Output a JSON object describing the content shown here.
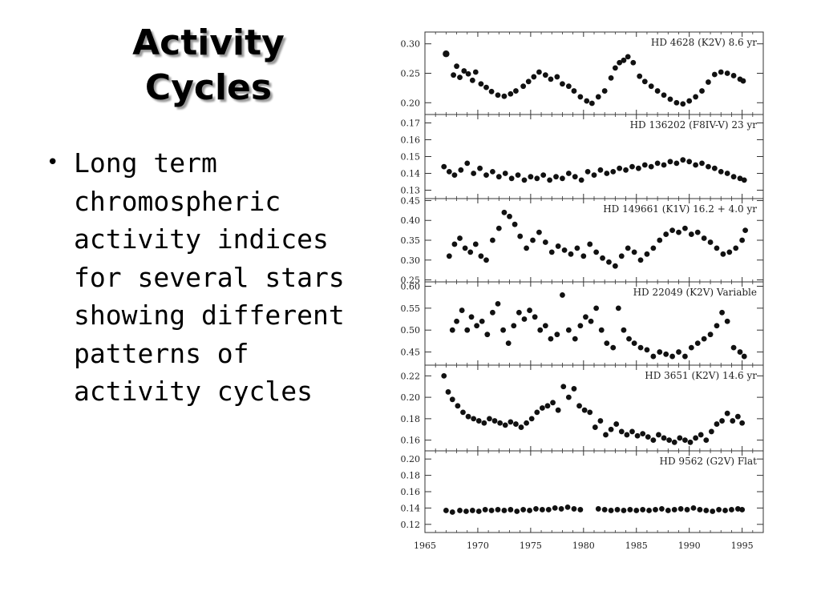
{
  "slide": {
    "title_lines": [
      "Activity",
      "Cycles"
    ],
    "bullets": [
      {
        "text": "Long term\nchromospheric\nactivity indices\nfor several stars\nshowing different\npatterns of\nactivity cycles"
      }
    ]
  },
  "chart_data": {
    "type": "scatter",
    "xlim": [
      1965,
      1997
    ],
    "xticks": [
      1965,
      1970,
      1975,
      1980,
      1985,
      1990,
      1995
    ],
    "xtick_labels": [
      "1965",
      "1970",
      "1975",
      "1980",
      "1985",
      "1990",
      "1995"
    ],
    "panels": [
      {
        "label": "HD 4628 (K2V)  8.6 yr",
        "ylim": [
          0.18,
          0.32
        ],
        "yticks": [
          0.2,
          0.25,
          0.3
        ],
        "ytick_labels": [
          "0.20",
          "0.25",
          "0.30"
        ],
        "x": [
          1967.0,
          1967.7,
          1968.0,
          1968.3,
          1968.7,
          1969.1,
          1969.5,
          1969.8,
          1970.3,
          1970.8,
          1971.3,
          1971.9,
          1972.5,
          1973.1,
          1973.6,
          1974.3,
          1974.8,
          1975.3,
          1975.8,
          1976.4,
          1976.9,
          1977.5,
          1978.0,
          1978.6,
          1979.1,
          1979.7,
          1980.3,
          1980.8,
          1981.4,
          1982.0,
          1982.6,
          1983.0,
          1983.4,
          1983.8,
          1984.2,
          1984.7,
          1985.3,
          1985.8,
          1986.4,
          1987.0,
          1987.6,
          1988.2,
          1988.8,
          1989.4,
          1990.0,
          1990.6,
          1991.2,
          1991.8,
          1992.4,
          1993.0,
          1993.6,
          1994.2,
          1994.8,
          1995.1
        ],
        "y": [
          0.283,
          0.247,
          0.262,
          0.243,
          0.254,
          0.249,
          0.238,
          0.252,
          0.232,
          0.226,
          0.219,
          0.213,
          0.211,
          0.215,
          0.22,
          0.228,
          0.236,
          0.244,
          0.252,
          0.247,
          0.24,
          0.244,
          0.232,
          0.228,
          0.22,
          0.21,
          0.203,
          0.199,
          0.21,
          0.22,
          0.242,
          0.259,
          0.268,
          0.272,
          0.278,
          0.268,
          0.245,
          0.236,
          0.228,
          0.22,
          0.213,
          0.206,
          0.2,
          0.198,
          0.203,
          0.21,
          0.22,
          0.235,
          0.248,
          0.252,
          0.25,
          0.246,
          0.24,
          0.237
        ],
        "size": [
          0.012,
          0.008,
          0.008,
          0.008,
          0.008,
          0.008,
          0.008,
          0.008,
          0.008,
          0.008,
          0.008,
          0.008,
          0.008,
          0.008,
          0.008,
          0.008,
          0.008,
          0.008,
          0.008,
          0.008,
          0.008,
          0.008,
          0.008,
          0.008,
          0.008,
          0.008,
          0.008,
          0.008,
          0.008,
          0.008,
          0.008,
          0.008,
          0.008,
          0.008,
          0.008,
          0.008,
          0.008,
          0.008,
          0.008,
          0.008,
          0.008,
          0.008,
          0.008,
          0.008,
          0.008,
          0.008,
          0.008,
          0.008,
          0.008,
          0.008,
          0.008,
          0.008,
          0.008,
          0.008
        ]
      },
      {
        "label": "HD 136202 (F8IV-V)  23 yr",
        "ylim": [
          0.125,
          0.175
        ],
        "yticks": [
          0.13,
          0.14,
          0.15,
          0.16,
          0.17
        ],
        "ytick_labels": [
          "0.13",
          "0.14",
          "0.15",
          "0.16",
          "0.17"
        ],
        "x": [
          1966.8,
          1967.3,
          1967.8,
          1968.4,
          1969.0,
          1969.6,
          1970.2,
          1970.8,
          1971.4,
          1972.0,
          1972.6,
          1973.2,
          1973.8,
          1974.4,
          1975.0,
          1975.6,
          1976.2,
          1976.8,
          1977.4,
          1978.0,
          1978.6,
          1979.2,
          1979.8,
          1980.4,
          1981.0,
          1981.6,
          1982.2,
          1982.8,
          1983.4,
          1984.0,
          1984.6,
          1985.2,
          1985.8,
          1986.4,
          1987.0,
          1987.6,
          1988.2,
          1988.8,
          1989.4,
          1990.0,
          1990.6,
          1991.2,
          1991.8,
          1992.4,
          1993.0,
          1993.6,
          1994.2,
          1994.8,
          1995.2
        ],
        "y": [
          0.144,
          0.141,
          0.139,
          0.142,
          0.146,
          0.14,
          0.143,
          0.139,
          0.141,
          0.138,
          0.14,
          0.137,
          0.139,
          0.136,
          0.138,
          0.137,
          0.139,
          0.136,
          0.138,
          0.137,
          0.14,
          0.138,
          0.136,
          0.141,
          0.139,
          0.142,
          0.14,
          0.141,
          0.143,
          0.142,
          0.144,
          0.143,
          0.145,
          0.144,
          0.146,
          0.145,
          0.147,
          0.146,
          0.148,
          0.147,
          0.145,
          0.146,
          0.144,
          0.143,
          0.141,
          0.14,
          0.138,
          0.137,
          0.136
        ],
        "size": [
          0.004,
          0.004,
          0.004,
          0.004,
          0.004,
          0.004,
          0.004,
          0.004,
          0.004,
          0.004,
          0.004,
          0.004,
          0.004,
          0.004,
          0.004,
          0.004,
          0.004,
          0.004,
          0.004,
          0.004,
          0.004,
          0.004,
          0.004,
          0.004,
          0.004,
          0.004,
          0.004,
          0.004,
          0.004,
          0.004,
          0.004,
          0.004,
          0.004,
          0.004,
          0.004,
          0.004,
          0.004,
          0.004,
          0.004,
          0.004,
          0.004,
          0.004,
          0.004,
          0.004,
          0.004,
          0.004,
          0.004,
          0.004,
          0.004
        ]
      },
      {
        "label": "HD 149661 (K1V)  16.2 + 4.0 yr",
        "ylim": [
          0.245,
          0.455
        ],
        "yticks": [
          0.25,
          0.3,
          0.35,
          0.4,
          0.45
        ],
        "ytick_labels": [
          "0.25",
          "0.30",
          "0.35",
          "0.40",
          "0.45"
        ],
        "x": [
          1967.3,
          1967.8,
          1968.3,
          1968.8,
          1969.3,
          1969.8,
          1970.3,
          1970.8,
          1971.4,
          1972.0,
          1972.5,
          1973.0,
          1973.5,
          1974.0,
          1974.6,
          1975.2,
          1975.8,
          1976.4,
          1977.0,
          1977.6,
          1978.2,
          1978.8,
          1979.4,
          1980.0,
          1980.6,
          1981.2,
          1981.8,
          1982.4,
          1983.0,
          1983.6,
          1984.2,
          1984.8,
          1985.4,
          1986.0,
          1986.6,
          1987.2,
          1987.8,
          1988.4,
          1989.0,
          1989.6,
          1990.2,
          1990.8,
          1991.4,
          1992.0,
          1992.6,
          1993.2,
          1993.8,
          1994.4,
          1995.0,
          1995.3
        ],
        "y": [
          0.31,
          0.34,
          0.355,
          0.33,
          0.32,
          0.34,
          0.31,
          0.3,
          0.35,
          0.38,
          0.42,
          0.41,
          0.39,
          0.36,
          0.33,
          0.35,
          0.37,
          0.345,
          0.32,
          0.335,
          0.325,
          0.315,
          0.33,
          0.31,
          0.34,
          0.32,
          0.305,
          0.295,
          0.285,
          0.31,
          0.33,
          0.32,
          0.3,
          0.315,
          0.33,
          0.35,
          0.365,
          0.375,
          0.37,
          0.38,
          0.365,
          0.37,
          0.355,
          0.345,
          0.33,
          0.315,
          0.32,
          0.33,
          0.35,
          0.375
        ],
        "size": [
          0.012,
          0.012,
          0.012,
          0.012,
          0.012,
          0.012,
          0.012,
          0.012,
          0.012,
          0.012,
          0.012,
          0.012,
          0.012,
          0.012,
          0.012,
          0.012,
          0.012,
          0.012,
          0.012,
          0.012,
          0.012,
          0.012,
          0.012,
          0.012,
          0.012,
          0.012,
          0.012,
          0.012,
          0.012,
          0.012,
          0.012,
          0.012,
          0.012,
          0.012,
          0.012,
          0.012,
          0.012,
          0.012,
          0.012,
          0.012,
          0.012,
          0.012,
          0.012,
          0.012,
          0.012,
          0.012,
          0.012,
          0.012,
          0.012,
          0.012
        ]
      },
      {
        "label": "HD 22049 (K2V)  Variable",
        "ylim": [
          0.42,
          0.61
        ],
        "yticks": [
          0.45,
          0.5,
          0.55,
          0.6
        ],
        "ytick_labels": [
          "0.45",
          "0.50",
          "0.55",
          "0.60"
        ],
        "x": [
          1967.6,
          1968.0,
          1968.5,
          1969.0,
          1969.4,
          1969.9,
          1970.4,
          1970.9,
          1971.4,
          1971.9,
          1972.4,
          1972.9,
          1973.4,
          1973.9,
          1974.4,
          1974.9,
          1975.4,
          1975.9,
          1976.4,
          1976.9,
          1977.5,
          1978.0,
          1978.6,
          1979.2,
          1979.7,
          1980.2,
          1980.7,
          1981.2,
          1981.7,
          1982.2,
          1982.8,
          1983.3,
          1983.8,
          1984.3,
          1984.8,
          1985.4,
          1986.0,
          1986.6,
          1987.2,
          1987.8,
          1988.4,
          1989.0,
          1989.6,
          1990.2,
          1990.8,
          1991.4,
          1992.0,
          1992.6,
          1993.1,
          1993.6,
          1994.2,
          1994.8,
          1995.2
        ],
        "y": [
          0.5,
          0.52,
          0.545,
          0.5,
          0.53,
          0.51,
          0.52,
          0.49,
          0.54,
          0.56,
          0.5,
          0.47,
          0.51,
          0.54,
          0.525,
          0.545,
          0.53,
          0.5,
          0.51,
          0.48,
          0.49,
          0.58,
          0.5,
          0.48,
          0.51,
          0.53,
          0.52,
          0.55,
          0.5,
          0.47,
          0.46,
          0.55,
          0.5,
          0.48,
          0.47,
          0.46,
          0.455,
          0.44,
          0.45,
          0.445,
          0.44,
          0.45,
          0.44,
          0.46,
          0.47,
          0.48,
          0.49,
          0.51,
          0.54,
          0.52,
          0.46,
          0.45,
          0.44
        ],
        "size": [
          0.007,
          0.007,
          0.007,
          0.007,
          0.007,
          0.007,
          0.007,
          0.007,
          0.007,
          0.007,
          0.007,
          0.007,
          0.007,
          0.007,
          0.007,
          0.007,
          0.007,
          0.007,
          0.007,
          0.007,
          0.007,
          0.007,
          0.007,
          0.007,
          0.007,
          0.007,
          0.007,
          0.007,
          0.007,
          0.007,
          0.007,
          0.007,
          0.007,
          0.007,
          0.007,
          0.007,
          0.007,
          0.007,
          0.007,
          0.007,
          0.007,
          0.007,
          0.007,
          0.007,
          0.007,
          0.007,
          0.007,
          0.007,
          0.007,
          0.007,
          0.007,
          0.007,
          0.007
        ]
      },
      {
        "label": "HD 3651 (K2V)  14.6 yr",
        "ylim": [
          0.15,
          0.23
        ],
        "yticks": [
          0.16,
          0.18,
          0.2,
          0.22
        ],
        "ytick_labels": [
          "0.16",
          "0.18",
          "0.20",
          "0.22"
        ],
        "x": [
          1966.8,
          1967.2,
          1967.6,
          1968.1,
          1968.6,
          1969.1,
          1969.6,
          1970.1,
          1970.6,
          1971.1,
          1971.6,
          1972.1,
          1972.6,
          1973.1,
          1973.6,
          1974.1,
          1974.6,
          1975.1,
          1975.6,
          1976.1,
          1976.6,
          1977.1,
          1977.6,
          1978.1,
          1978.6,
          1979.1,
          1979.6,
          1980.1,
          1980.6,
          1981.1,
          1981.6,
          1982.1,
          1982.6,
          1983.1,
          1983.6,
          1984.1,
          1984.6,
          1985.1,
          1985.6,
          1986.1,
          1986.6,
          1987.1,
          1987.6,
          1988.1,
          1988.6,
          1989.1,
          1989.6,
          1990.1,
          1990.6,
          1991.1,
          1991.6,
          1992.1,
          1992.6,
          1993.1,
          1993.6,
          1994.1,
          1994.6,
          1995.0
        ],
        "y": [
          0.22,
          0.205,
          0.198,
          0.192,
          0.186,
          0.182,
          0.18,
          0.178,
          0.176,
          0.18,
          0.178,
          0.176,
          0.174,
          0.177,
          0.175,
          0.172,
          0.176,
          0.18,
          0.186,
          0.19,
          0.192,
          0.195,
          0.188,
          0.21,
          0.2,
          0.208,
          0.192,
          0.188,
          0.186,
          0.172,
          0.178,
          0.165,
          0.17,
          0.175,
          0.168,
          0.165,
          0.168,
          0.164,
          0.166,
          0.163,
          0.16,
          0.165,
          0.162,
          0.16,
          0.158,
          0.162,
          0.16,
          0.158,
          0.162,
          0.165,
          0.16,
          0.168,
          0.175,
          0.178,
          0.185,
          0.178,
          0.182,
          0.176
        ],
        "size": [
          0.003,
          0.003,
          0.003,
          0.003,
          0.003,
          0.003,
          0.003,
          0.003,
          0.003,
          0.003,
          0.003,
          0.003,
          0.003,
          0.003,
          0.003,
          0.003,
          0.003,
          0.003,
          0.003,
          0.003,
          0.003,
          0.003,
          0.003,
          0.003,
          0.003,
          0.003,
          0.003,
          0.003,
          0.003,
          0.003,
          0.003,
          0.003,
          0.003,
          0.003,
          0.003,
          0.003,
          0.003,
          0.003,
          0.003,
          0.003,
          0.003,
          0.003,
          0.003,
          0.003,
          0.003,
          0.003,
          0.003,
          0.003,
          0.003,
          0.003,
          0.003,
          0.003,
          0.003,
          0.003,
          0.003,
          0.003,
          0.003,
          0.003
        ]
      },
      {
        "label": "HD 9562 (G2V)  Flat",
        "ylim": [
          0.11,
          0.21
        ],
        "yticks": [
          0.12,
          0.14,
          0.16,
          0.18,
          0.2
        ],
        "ytick_labels": [
          "0.12",
          "0.14",
          "0.16",
          "0.18",
          "0.20"
        ],
        "x": [
          1967.0,
          1967.6,
          1968.3,
          1968.9,
          1969.5,
          1970.1,
          1970.7,
          1971.3,
          1971.9,
          1972.5,
          1973.1,
          1973.7,
          1974.3,
          1974.9,
          1975.5,
          1976.1,
          1976.7,
          1977.3,
          1977.9,
          1978.5,
          1979.1,
          1979.7,
          1981.4,
          1982.0,
          1982.6,
          1983.2,
          1983.8,
          1984.4,
          1985.0,
          1985.6,
          1986.2,
          1986.8,
          1987.4,
          1988.0,
          1988.6,
          1989.2,
          1989.8,
          1990.4,
          1991.0,
          1991.6,
          1992.2,
          1992.8,
          1993.4,
          1994.0,
          1994.6,
          1995.0
        ],
        "y": [
          0.137,
          0.135,
          0.137,
          0.136,
          0.137,
          0.136,
          0.138,
          0.137,
          0.138,
          0.137,
          0.138,
          0.136,
          0.138,
          0.137,
          0.139,
          0.138,
          0.138,
          0.14,
          0.139,
          0.141,
          0.139,
          0.138,
          0.139,
          0.138,
          0.137,
          0.138,
          0.137,
          0.138,
          0.137,
          0.138,
          0.137,
          0.138,
          0.139,
          0.137,
          0.138,
          0.139,
          0.138,
          0.14,
          0.138,
          0.137,
          0.136,
          0.138,
          0.137,
          0.138,
          0.139,
          0.138
        ],
        "size": [
          0.005,
          0.005,
          0.005,
          0.005,
          0.005,
          0.005,
          0.005,
          0.005,
          0.005,
          0.005,
          0.005,
          0.005,
          0.005,
          0.005,
          0.005,
          0.005,
          0.005,
          0.005,
          0.005,
          0.005,
          0.005,
          0.005,
          0.005,
          0.005,
          0.005,
          0.005,
          0.005,
          0.005,
          0.005,
          0.005,
          0.005,
          0.005,
          0.005,
          0.005,
          0.005,
          0.005,
          0.005,
          0.005,
          0.005,
          0.005,
          0.005,
          0.005,
          0.005,
          0.005,
          0.005,
          0.005
        ]
      }
    ]
  }
}
